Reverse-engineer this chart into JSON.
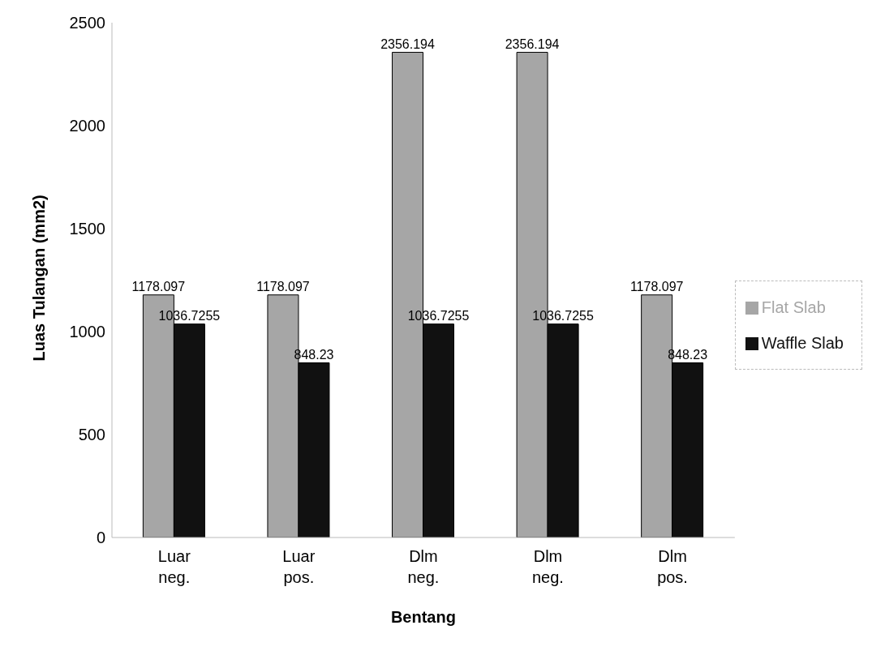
{
  "chart_data": {
    "type": "bar",
    "xlabel": "Bentang",
    "ylabel": "Luas Tulangan (mm2)",
    "categories": [
      "Luar neg.",
      "Luar pos.",
      "Dlm neg.",
      "Dlm neg.",
      "Dlm pos."
    ],
    "series": [
      {
        "name": "Flat Slab",
        "color": "#a6a6a6",
        "values": [
          1178.097,
          1178.097,
          2356.194,
          2356.194,
          1178.097
        ]
      },
      {
        "name": "Waffle Slab",
        "color": "#111111",
        "values": [
          1036.7255,
          848.23,
          1036.7255,
          1036.7255,
          848.23
        ]
      }
    ],
    "ylim": [
      0,
      2500
    ],
    "yticks": [
      0,
      500,
      1000,
      1500,
      2000,
      2500
    ],
    "grid": false,
    "legend": "right",
    "data_labels": true
  }
}
